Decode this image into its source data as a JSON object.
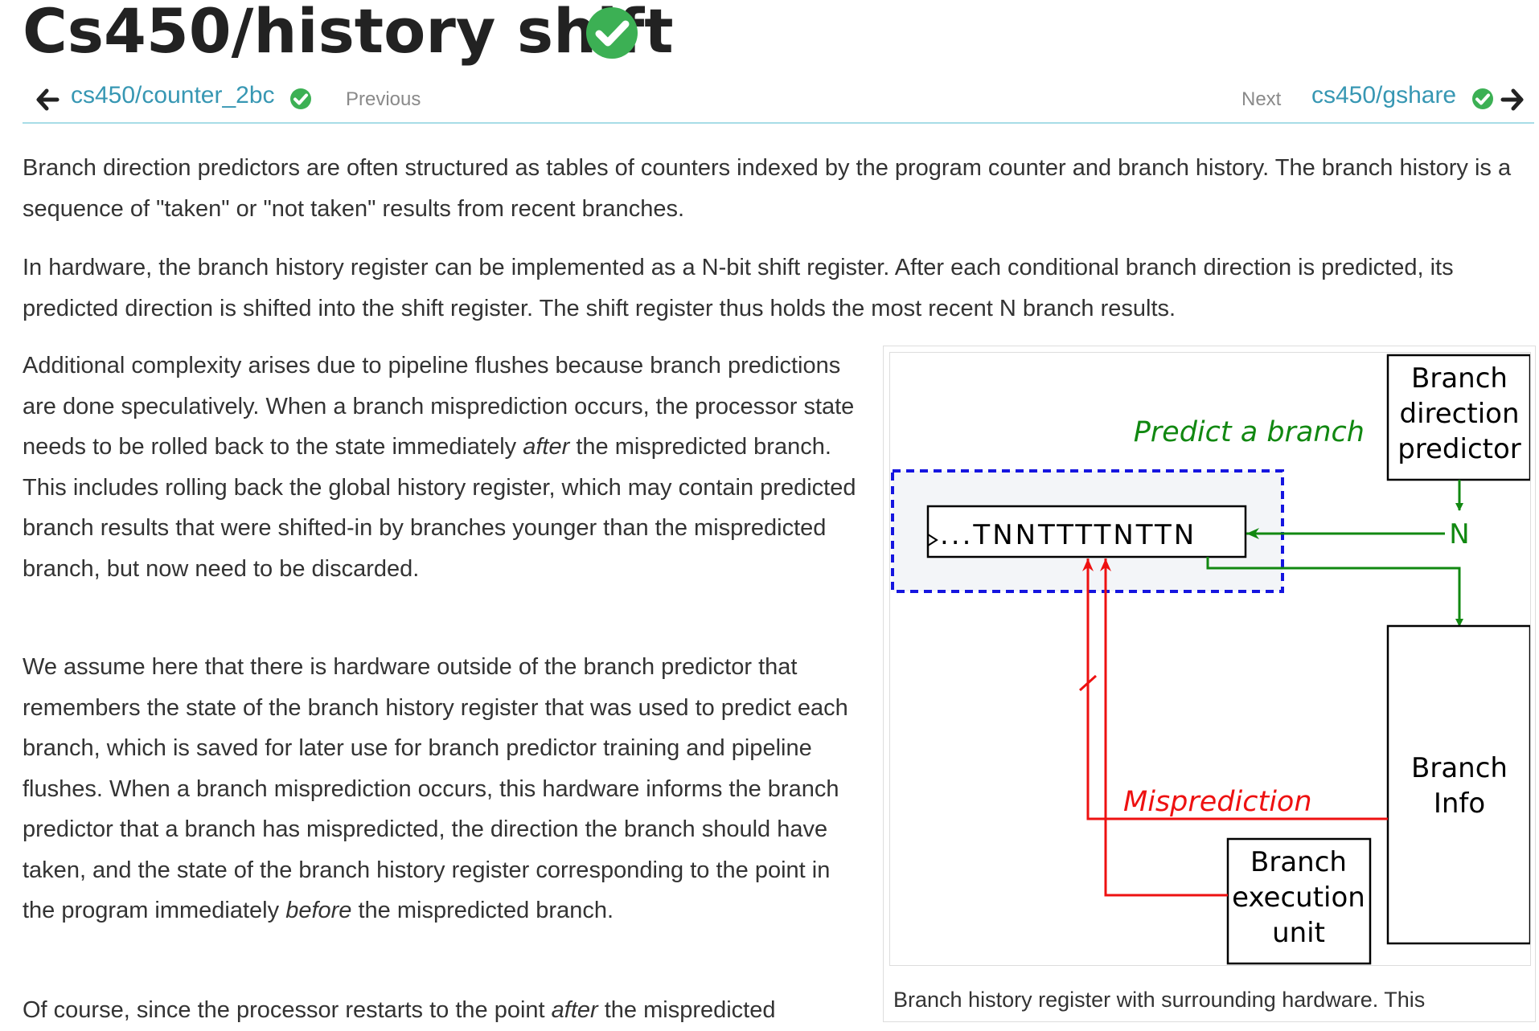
{
  "page": {
    "title": "Cs450/history shift"
  },
  "nav": {
    "prev_link": "cs450/counter_2bc",
    "prev_label": "Previous",
    "next_label": "Next",
    "next_link": "cs450/gshare"
  },
  "content": {
    "p1": "Branch direction predictors are often structured as tables of counters indexed by the program counter and branch history. The branch history is a sequence of \"taken\" or \"not taken\" results from recent branches.",
    "p2": "In hardware, the branch history register can be implemented as a N-bit shift register. After each conditional branch direction is predicted, its predicted direction is shifted into the shift register. The shift register thus holds the most recent N branch results.",
    "p3_a": "Additional complexity arises due to pipeline flushes because branch predictions are done speculatively. When a branch misprediction occurs, the processor state needs to be rolled back to the state immediately ",
    "p3_em": "after",
    "p3_b": " the mispredicted branch. This includes rolling back the global history register, which may contain predicted branch results that were shifted-in by branches younger than the mispredicted branch, but now need to be discarded.",
    "p4_a": "We assume here that there is hardware outside of the branch predictor that remembers the state of the branch history register that was used to predict each branch, which is saved for later use for branch predictor training and pipeline flushes. When a branch misprediction occurs, this hardware informs the branch predictor that a branch has mispredicted, the direction the branch should have taken, and the state of the branch history register corresponding to the point in the program immediately ",
    "p4_em": "before",
    "p4_b": " the mispredicted branch.",
    "p5_a": "Of course, since the processor restarts to the point ",
    "p5_em": "after",
    "p5_b": " the mispredicted"
  },
  "diagram": {
    "predictor_line1": "Branch",
    "predictor_line2": "direction",
    "predictor_line3": "predictor",
    "predict_label": "Predict a branch",
    "register_contents": "...TNNTTTTNTTN",
    "new_bit": "N",
    "mispredict_label": "Misprediction",
    "info_line1": "Branch",
    "info_line2": "Info",
    "exec_line1": "Branch",
    "exec_line2": "execution",
    "exec_line3": "unit",
    "caption": "Branch history register with surrounding hardware. This"
  },
  "colors": {
    "link": "#3797b3",
    "check": "#3cb054",
    "green": "#118811",
    "red": "#ee1111",
    "blue": "#1515e0"
  }
}
